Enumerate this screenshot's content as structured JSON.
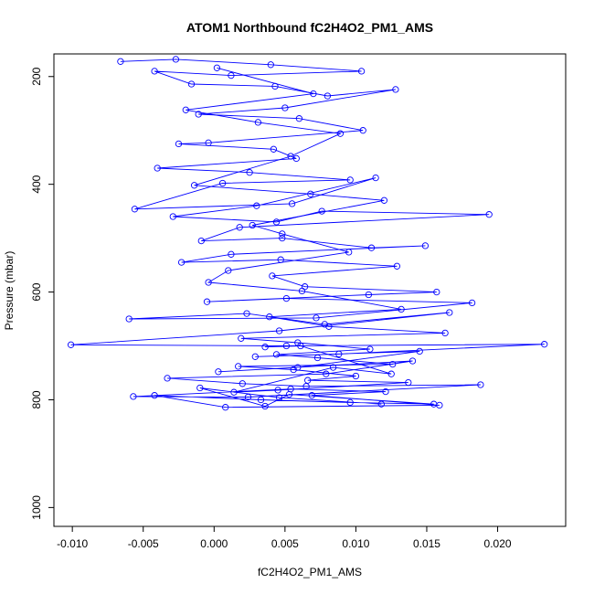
{
  "chart_data": {
    "type": "line",
    "title": "ATOM1 Northbound fC2H4O2_PM1_AMS",
    "xlabel": "fC2H4O2_PM1_AMS",
    "ylabel": "Pressure (mbar)",
    "xlim": [
      -0.0113,
      0.0248
    ],
    "ylim": [
      1035,
      158
    ],
    "y_reversed": true,
    "x_ticks": [
      -0.01,
      -0.005,
      0.0,
      0.005,
      0.01,
      0.015,
      0.02
    ],
    "x_tick_labels": [
      "-0.010",
      "-0.005",
      "0.000",
      "0.005",
      "0.010",
      "0.015",
      "0.020"
    ],
    "y_ticks": [
      200,
      400,
      600,
      800,
      1000
    ],
    "y_tick_labels": [
      "200",
      "400",
      "600",
      "800",
      "1000"
    ],
    "grid": false,
    "legend": "none",
    "series_color": "#0000ff",
    "marker": "open-circle",
    "series": [
      {
        "x": [
          -0.0066,
          -0.0027,
          0.004,
          0.0104,
          0.0012,
          -0.0042,
          -0.0016,
          0.0043,
          0.008,
          0.0128,
          0.005,
          -0.0011,
          0.006,
          0.0105,
          -0.0004,
          -0.0025,
          0.0042,
          0.0058,
          -0.004,
          0.0025,
          0.0096,
          0.0006,
          -0.0056,
          0.0055,
          0.0114,
          0.003,
          -0.0029,
          0.0044,
          0.0076,
          0.0194,
          0.0018,
          -0.0009,
          0.0048,
          0.0111,
          0.0149,
          0.0012,
          -0.0023,
          0.0047,
          0.0129,
          0.0041,
          0.0064,
          0.0157,
          0.0109,
          -0.0005,
          0.0051,
          0.0182,
          0.0072,
          -0.006,
          0.0023,
          0.0078,
          0.0166,
          0.0046,
          -0.0101,
          0.0051,
          0.0233,
          0.0088,
          0.0029,
          0.0145,
          0.0059,
          0.0003,
          0.014,
          0.0079,
          -0.0033,
          0.002,
          0.0065,
          0.0188,
          0.0024,
          -0.0057,
          0.0054,
          0.0121,
          0.0069,
          0.0159,
          0.0008,
          -0.0042,
          0.0033,
          0.0096,
          0.0155,
          0.0053,
          0.0036,
          -0.001,
          0.0046,
          0.0118
        ],
        "y": [
          172,
          168,
          178,
          190,
          198,
          190,
          214,
          218,
          236,
          224,
          258,
          270,
          278,
          300,
          323,
          325,
          335,
          352,
          370,
          378,
          392,
          398,
          446,
          436,
          388,
          440,
          460,
          470,
          450,
          456,
          480,
          505,
          500,
          518,
          514,
          530,
          545,
          540,
          552,
          570,
          590,
          600,
          605,
          618,
          612,
          620,
          648,
          650,
          640,
          660,
          638,
          672,
          698,
          700,
          697,
          715,
          720,
          710,
          740,
          748,
          728,
          752,
          760,
          770,
          775,
          772,
          795,
          794,
          780,
          785,
          792,
          810,
          814,
          792,
          800,
          805,
          808,
          790,
          812,
          778,
          796,
          808
        ]
      },
      {
        "x": [
          0.0002,
          0.007,
          -0.002,
          0.0031,
          0.0089,
          0.0054,
          -0.0014,
          0.0068,
          0.012,
          0.0027,
          0.0048,
          0.0095,
          0.001,
          -0.0004,
          0.0062,
          0.0132,
          0.0039,
          0.0081,
          0.0163,
          0.0019,
          0.0059,
          0.011,
          0.0044,
          0.0073,
          0.0126,
          0.0017,
          0.0056,
          0.01,
          0.0066,
          0.0137,
          0.0045,
          0.0014,
          0.0084,
          0.0125,
          0.0061,
          0.0036
        ],
        "y": [
          184,
          232,
          262,
          285,
          306,
          348,
          402,
          418,
          430,
          476,
          492,
          526,
          560,
          582,
          598,
          632,
          646,
          664,
          676,
          686,
          694,
          706,
          716,
          722,
          734,
          738,
          744,
          756,
          764,
          768,
          782,
          786,
          740,
          752,
          700,
          702
        ]
      }
    ]
  }
}
